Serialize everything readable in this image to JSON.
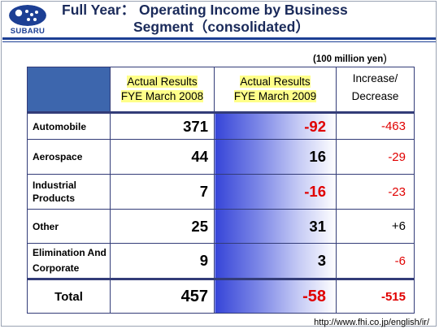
{
  "logo": {
    "text": "SUBARU"
  },
  "header": {
    "title_line1": "Full Year： Operating Income by Business",
    "title_line2": "Segment（consolidated）"
  },
  "unit_label": "(100 million yen",
  "unit_close": ")",
  "columns": [
    {
      "line1": "Actual Results",
      "line2": "FYE March 2008"
    },
    {
      "line1": "Actual Results",
      "line2": "FYE March 2009"
    },
    {
      "line1": "Increase/",
      "line2": "Decrease"
    }
  ],
  "rows": [
    {
      "label": "Automobile",
      "fy2008": "371",
      "fy2009": "-92",
      "change": "-463"
    },
    {
      "label": "Aerospace",
      "fy2008": "44",
      "fy2009": "16",
      "change": "-29"
    },
    {
      "label": "Industrial Products",
      "fy2008": "7",
      "fy2009": "-16",
      "change": "-23"
    },
    {
      "label": "Other",
      "fy2008": "25",
      "fy2009": "31",
      "change": "+6"
    },
    {
      "label": "Elimination And Corporate",
      "fy2008": "9",
      "fy2009": "3",
      "change": "-6"
    }
  ],
  "total": {
    "label": "Total",
    "fy2008": "457",
    "fy2009": "-58",
    "change": "-515"
  },
  "footer_url": "http://www.fhi.co.jp/english/ir/",
  "colors": {
    "brand_blue": "#1c3f94",
    "negative": "#e00000",
    "header_highlight": "#ffff8a"
  }
}
